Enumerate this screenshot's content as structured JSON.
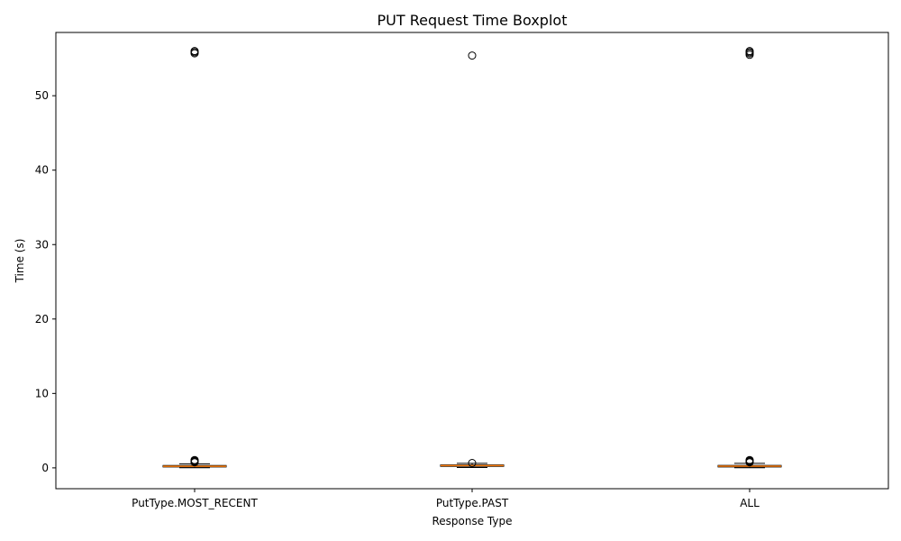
{
  "chart_data": {
    "type": "boxplot",
    "title": "PUT Request Time Boxplot",
    "xlabel": "Response Type",
    "ylabel": "Time (s)",
    "categories": [
      "PutType.MOST_RECENT",
      "PutType.PAST",
      "ALL"
    ],
    "ylim": [
      -2.8,
      58.5
    ],
    "yticks": [
      0,
      10,
      20,
      30,
      40,
      50
    ],
    "grid": false,
    "boxes": [
      {
        "category": "PutType.MOST_RECENT",
        "whisker_low": 0.02,
        "q1": 0.12,
        "median": 0.22,
        "q3": 0.32,
        "whisker_high": 0.55,
        "fliers": [
          0.75,
          0.85,
          0.95,
          1.05,
          55.7,
          55.85,
          56.0
        ]
      },
      {
        "category": "PutType.PAST",
        "whisker_low": 0.05,
        "q1": 0.2,
        "median": 0.3,
        "q3": 0.4,
        "whisker_high": 0.6,
        "fliers": [
          0.65,
          55.4
        ]
      },
      {
        "category": "ALL",
        "whisker_low": 0.02,
        "q1": 0.12,
        "median": 0.23,
        "q3": 0.33,
        "whisker_high": 0.6,
        "fliers": [
          0.75,
          0.85,
          0.95,
          1.05,
          55.5,
          55.7,
          55.85,
          56.0
        ]
      }
    ],
    "colors": {
      "median": "#ff7f0e",
      "box": "#000000",
      "flier": "#000000"
    }
  }
}
